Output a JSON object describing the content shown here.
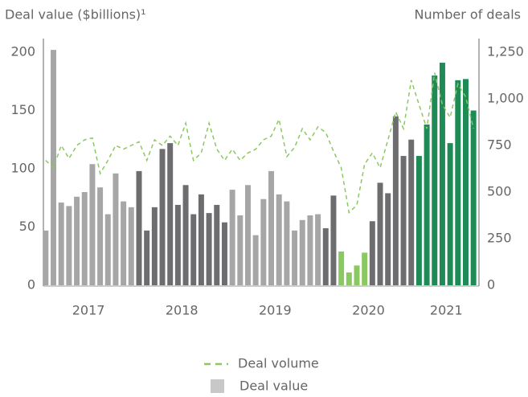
{
  "chart_data": {
    "type": "bar_line",
    "y_label": "Deal value ($billions)¹",
    "y2_label": "Number of deals",
    "categories": [
      "2017",
      "2017",
      "2017",
      "2017",
      "2017",
      "2017",
      "2017",
      "2017",
      "2017",
      "2017",
      "2017",
      "2017",
      "2018",
      "2018",
      "2018",
      "2018",
      "2018",
      "2018",
      "2018",
      "2018",
      "2018",
      "2018",
      "2018",
      "2018",
      "2019",
      "2019",
      "2019",
      "2019",
      "2019",
      "2019",
      "2019",
      "2019",
      "2019",
      "2019",
      "2019",
      "2019",
      "2020",
      "2020",
      "2020",
      "2020",
      "2020",
      "2020",
      "2020",
      "2020",
      "2020",
      "2020",
      "2020",
      "2020",
      "2021",
      "2021",
      "2021",
      "2021",
      "2021",
      "2021",
      "2021",
      "2021"
    ],
    "series": [
      {
        "name": "Deal volume",
        "color": "#8cc862",
        "dashed": true,
        "axis": "y2",
        "values": [
          670,
          630,
          750,
          680,
          750,
          780,
          790,
          600,
          670,
          750,
          730,
          750,
          770,
          670,
          780,
          750,
          800,
          750,
          870,
          670,
          710,
          870,
          730,
          670,
          730,
          670,
          710,
          730,
          780,
          800,
          890,
          690,
          740,
          840,
          780,
          850,
          820,
          720,
          630,
          390,
          430,
          650,
          710,
          630,
          780,
          930,
          840,
          1100,
          970,
          840,
          1140,
          970,
          900,
          1080,
          1010,
          840
        ]
      },
      {
        "name": "Deal value",
        "color": "#c8c8c8",
        "values": [
          47,
          202,
          71,
          68,
          76,
          80,
          104,
          84,
          61,
          96,
          72,
          67,
          98,
          47,
          67,
          117,
          122,
          69,
          86,
          61,
          78,
          62,
          69,
          54,
          82,
          60,
          86,
          43,
          74,
          98,
          78,
          72,
          47,
          56,
          60,
          61,
          49,
          77,
          29,
          11,
          17,
          28,
          55,
          88,
          79,
          145,
          111,
          125,
          111,
          138,
          180,
          191,
          122,
          176,
          177,
          150
        ],
        "colors": [
          "#a6a6a6",
          "#a6a6a6",
          "#a6a6a6",
          "#a6a6a6",
          "#a6a6a6",
          "#a6a6a6",
          "#a6a6a6",
          "#a6a6a6",
          "#a6a6a6",
          "#a6a6a6",
          "#a6a6a6",
          "#a6a6a6",
          "#6d6d70",
          "#6d6d70",
          "#6d6d70",
          "#6d6d70",
          "#6d6d70",
          "#6d6d70",
          "#6d6d70",
          "#6d6d70",
          "#6d6d70",
          "#6d6d70",
          "#6d6d70",
          "#6d6d70",
          "#a6a6a6",
          "#a6a6a6",
          "#a6a6a6",
          "#a6a6a6",
          "#a6a6a6",
          "#a6a6a6",
          "#a6a6a6",
          "#a6a6a6",
          "#a6a6a6",
          "#a6a6a6",
          "#a6a6a6",
          "#a6a6a6",
          "#6d6d70",
          "#6d6d70",
          "#8cc862",
          "#8cc862",
          "#8cc862",
          "#8cc862",
          "#6d6d70",
          "#6d6d70",
          "#6d6d70",
          "#6d6d70",
          "#6d6d70",
          "#6d6d70",
          "#1e8a55",
          "#1e8a55",
          "#1e8a55",
          "#1e8a55",
          "#1e8a55",
          "#1e8a55",
          "#1e8a55",
          "#1e8a55"
        ]
      }
    ],
    "ylim": [
      0,
      200
    ],
    "yticks": [
      0,
      50,
      100,
      150,
      200
    ],
    "y2lim": [
      0,
      1250
    ],
    "y2ticks": [
      0,
      250,
      500,
      750,
      {
        "value": 1000,
        "label": "1,000"
      },
      {
        "value": 1250,
        "label": "1,250"
      }
    ],
    "grid": false
  }
}
